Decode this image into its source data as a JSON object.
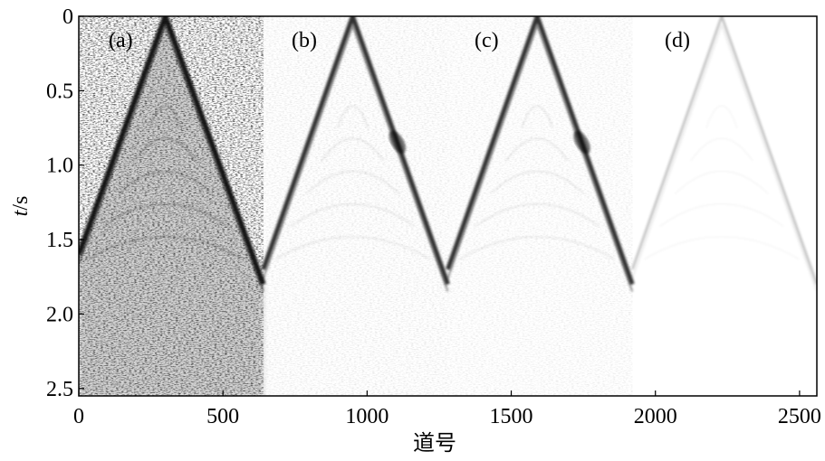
{
  "figure": {
    "xlabel": "道号",
    "ylabel_italic": "t",
    "ylabel_rest": "/s",
    "panel_labels": [
      "(a)",
      "(b)",
      "(c)",
      "(d)"
    ],
    "x_ticks": [
      "0",
      "500",
      "1000",
      "1500",
      "2000",
      "2500"
    ],
    "y_ticks": [
      "0",
      "0.5",
      "1.0",
      "1.5",
      "2.0",
      "2.5"
    ],
    "x_range": [
      0,
      2560
    ],
    "y_range": [
      0,
      2.55
    ],
    "panel_apex_trace": [
      300,
      950,
      1590,
      2230
    ],
    "panel_bounds": [
      0,
      640,
      1280,
      1920,
      2560
    ],
    "colormap": "grayscale"
  }
}
